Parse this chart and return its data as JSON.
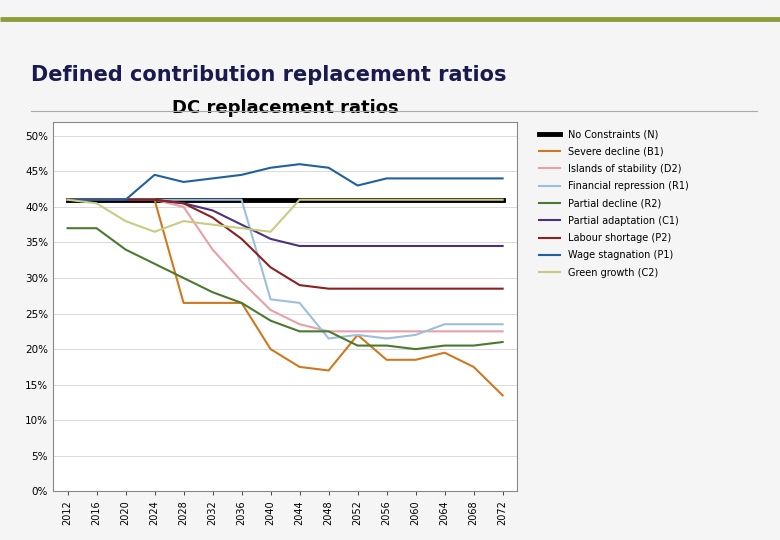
{
  "title": "Defined contribution replacement ratios",
  "chart_title": "DC replacement ratios",
  "background_color": "#f5f5f5",
  "chart_bg": "#ffffff",
  "years": [
    2012,
    2016,
    2020,
    2024,
    2028,
    2032,
    2036,
    2040,
    2044,
    2048,
    2052,
    2056,
    2060,
    2064,
    2068,
    2072
  ],
  "series": {
    "No Constraints (N)": {
      "color": "#000000",
      "lw": 3.5,
      "values": [
        0.41,
        0.41,
        0.41,
        0.41,
        0.41,
        0.41,
        0.41,
        0.41,
        0.41,
        0.41,
        0.41,
        0.41,
        0.41,
        0.41,
        0.41,
        0.41
      ]
    },
    "Severe decline (B1)": {
      "color": "#D07820",
      "lw": 1.5,
      "values": [
        0.41,
        0.41,
        0.41,
        0.41,
        0.265,
        0.265,
        0.265,
        0.2,
        0.175,
        0.17,
        0.22,
        0.185,
        0.185,
        0.195,
        0.175,
        0.135
      ]
    },
    "Islands of stability (D2)": {
      "color": "#E8A0A8",
      "lw": 1.5,
      "values": [
        0.41,
        0.41,
        0.41,
        0.41,
        0.4,
        0.34,
        0.295,
        0.255,
        0.235,
        0.225,
        0.225,
        0.225,
        0.225,
        0.225,
        0.225,
        0.225
      ]
    },
    "Financial repression (R1)": {
      "color": "#9BBFDD",
      "lw": 1.5,
      "values": [
        0.41,
        0.41,
        0.41,
        0.41,
        0.41,
        0.41,
        0.41,
        0.27,
        0.265,
        0.215,
        0.22,
        0.215,
        0.22,
        0.235,
        0.235,
        0.235
      ]
    },
    "Partial decline (R2)": {
      "color": "#4A7A30",
      "lw": 1.5,
      "values": [
        0.37,
        0.37,
        0.34,
        0.32,
        0.3,
        0.28,
        0.265,
        0.24,
        0.225,
        0.225,
        0.205,
        0.205,
        0.2,
        0.205,
        0.205,
        0.21
      ]
    },
    "Partial adaptation (C1)": {
      "color": "#4B3080",
      "lw": 1.5,
      "values": [
        0.41,
        0.41,
        0.41,
        0.41,
        0.405,
        0.395,
        0.375,
        0.355,
        0.345,
        0.345,
        0.345,
        0.345,
        0.345,
        0.345,
        0.345,
        0.345
      ]
    },
    "Labour shortage (P2)": {
      "color": "#8B2020",
      "lw": 1.5,
      "values": [
        0.41,
        0.41,
        0.41,
        0.41,
        0.405,
        0.385,
        0.355,
        0.315,
        0.29,
        0.285,
        0.285,
        0.285,
        0.285,
        0.285,
        0.285,
        0.285
      ]
    },
    "Wage stagnation (P1)": {
      "color": "#2060A0",
      "lw": 1.5,
      "values": [
        0.41,
        0.41,
        0.41,
        0.445,
        0.435,
        0.44,
        0.445,
        0.455,
        0.46,
        0.455,
        0.43,
        0.44,
        0.44,
        0.44,
        0.44,
        0.44
      ]
    },
    "Green growth (C2)": {
      "color": "#C8CC80",
      "lw": 1.5,
      "values": [
        0.41,
        0.405,
        0.38,
        0.365,
        0.38,
        0.375,
        0.37,
        0.365,
        0.41,
        0.41,
        0.41,
        0.41,
        0.41,
        0.41,
        0.41,
        0.41
      ]
    }
  },
  "ylim": [
    0.0,
    0.52
  ],
  "yticks": [
    0.0,
    0.05,
    0.1,
    0.15,
    0.2,
    0.25,
    0.3,
    0.35,
    0.4,
    0.45,
    0.5
  ],
  "ytick_labels": [
    "0%",
    "5%",
    "10%",
    "15%",
    "20%",
    "25%",
    "30%",
    "35%",
    "40%",
    "45%",
    "50%"
  ],
  "olive_line_color": "#8B9E3A",
  "gray_line_color": "#AAAAAA",
  "title_color": "#1a1a4e",
  "title_fontsize": 15,
  "chart_title_fontsize": 13
}
